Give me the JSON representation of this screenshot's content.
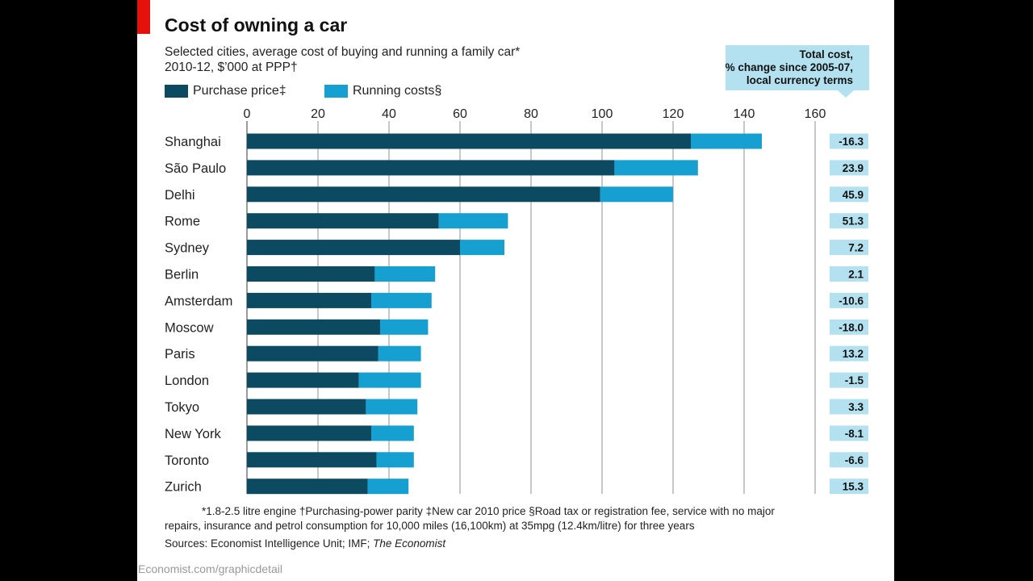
{
  "title": "Cost of owning a car",
  "subtitle_line1": "Selected cities, average cost of buying and running a family car*",
  "subtitle_line2": "2010-12, $’000 at PPP†",
  "legend": [
    {
      "label": "Purchase price‡",
      "color": "#0b4a60"
    },
    {
      "label": "Running costs§",
      "color": "#16a0d2"
    }
  ],
  "pct_header": [
    "Total cost,",
    "% change since 2005-07,",
    "local currency terms"
  ],
  "footnote_line1": "*1.8-2.5 litre engine   †Purchasing-power parity   ‡New car 2010 price   §Road tax or registration fee, service with no major",
  "footnote_line2": "repairs, insurance and petrol consumption for 10,000 miles (16,100km) at 35mpg (12.4km/litre) for three years",
  "sources_prefix": "Sources: Economist Intelligence Unit; IMF; ",
  "sources_italic": "The Economist",
  "credit": "Economist.com/graphicdetail",
  "chart_data": {
    "type": "bar",
    "orientation": "horizontal",
    "stacked": true,
    "xlim": [
      0,
      160
    ],
    "xticks": [
      0,
      20,
      40,
      60,
      80,
      100,
      120,
      140,
      160
    ],
    "grid": true,
    "categories": [
      "Shanghai",
      "São Paulo",
      "Delhi",
      "Rome",
      "Sydney",
      "Berlin",
      "Amsterdam",
      "Moscow",
      "Paris",
      "London",
      "Tokyo",
      "New York",
      "Toronto",
      "Zurich"
    ],
    "series": [
      {
        "name": "Purchase price‡",
        "values": [
          125,
          103.5,
          99.5,
          54,
          60,
          36,
          35,
          37.5,
          37,
          31.5,
          33.5,
          35,
          36.5,
          34
        ],
        "color": "#0b4a60"
      },
      {
        "name": "Running costs§",
        "values": [
          20,
          23.5,
          20.5,
          19.5,
          12.5,
          17,
          17,
          13.5,
          12,
          17.5,
          14.5,
          12,
          10.5,
          11.5
        ],
        "color": "#16a0d2"
      }
    ],
    "pct_change": [
      "-16.3",
      "23.9",
      "45.9",
      "51.3",
      "7.2",
      "2.1",
      "-10.6",
      "-18.0",
      "13.2",
      "-1.5",
      "3.3",
      "-8.1",
      "-6.6",
      "15.3"
    ]
  }
}
